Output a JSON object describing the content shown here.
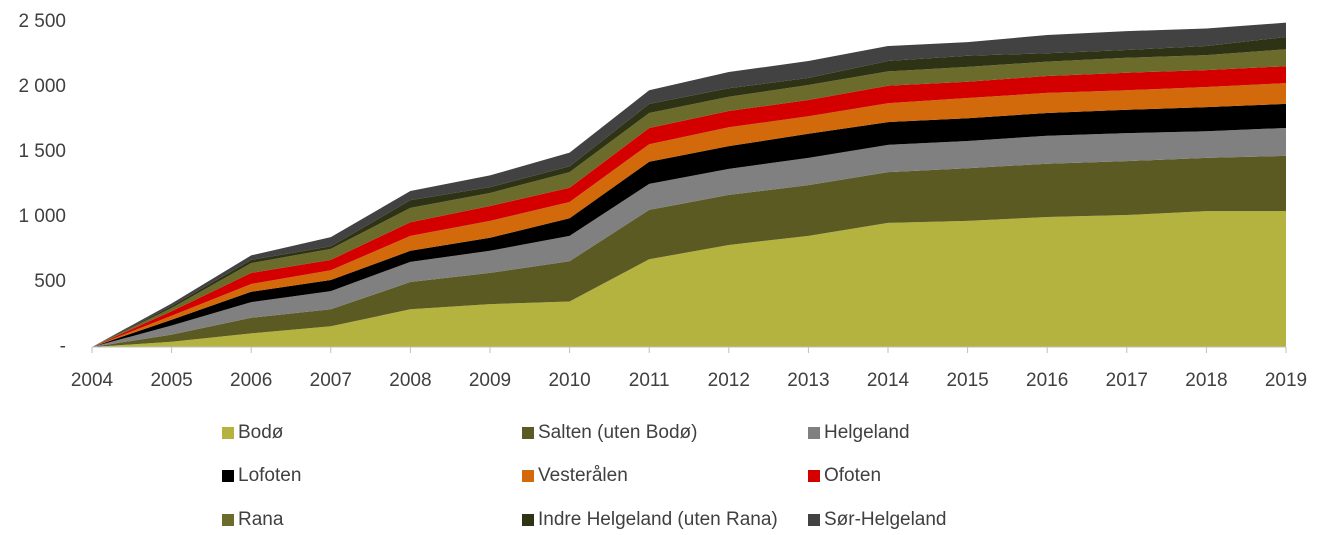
{
  "chart_data": {
    "type": "stacked_area",
    "categories": [
      "2004",
      "2005",
      "2006",
      "2007",
      "2008",
      "2009",
      "2010",
      "2011",
      "2012",
      "2013",
      "2014",
      "2015",
      "2016",
      "2017",
      "2018",
      "2019"
    ],
    "ylim": [
      0,
      2500
    ],
    "yticks": [
      {
        "value": 0,
        "label": "-"
      },
      500,
      {
        "value": 1000,
        "label": "1 000"
      },
      {
        "value": 1500,
        "label": "1 500"
      },
      {
        "value": 2000,
        "label": "2 000"
      },
      {
        "value": 2500,
        "label": "2 500"
      }
    ],
    "grid": false,
    "legend": "bottom",
    "series": [
      {
        "name": "Bodø",
        "color": "#b5b340",
        "values": [
          0,
          40,
          105,
          160,
          290,
          330,
          350,
          675,
          785,
          855,
          955,
          970,
          1000,
          1015,
          1045,
          1045
        ]
      },
      {
        "name": "Salten (uten Bodø)",
        "color": "#5a5a22",
        "values": [
          0,
          55,
          120,
          130,
          210,
          240,
          310,
          380,
          385,
          390,
          390,
          405,
          410,
          415,
          410,
          425
        ]
      },
      {
        "name": "Helgeland",
        "color": "#808080",
        "values": [
          0,
          70,
          120,
          140,
          155,
          170,
          195,
          200,
          200,
          210,
          210,
          210,
          215,
          215,
          205,
          215
        ]
      },
      {
        "name": "Lofoten",
        "color": "#000000",
        "values": [
          0,
          45,
          80,
          85,
          85,
          100,
          135,
          170,
          175,
          185,
          175,
          175,
          175,
          180,
          185,
          185
        ]
      },
      {
        "name": "Vesterålen",
        "color": "#d2690a",
        "values": [
          0,
          30,
          60,
          75,
          115,
          130,
          125,
          135,
          145,
          135,
          145,
          155,
          155,
          150,
          155,
          160
        ]
      },
      {
        "name": "Ofoten",
        "color": "#d40000",
        "values": [
          0,
          35,
          85,
          80,
          105,
          115,
          110,
          125,
          125,
          125,
          135,
          125,
          130,
          135,
          130,
          130
        ]
      },
      {
        "name": "Rana",
        "color": "#6b6b2b",
        "values": [
          0,
          25,
          75,
          85,
          110,
          100,
          120,
          115,
          110,
          115,
          110,
          115,
          110,
          115,
          115,
          130
        ]
      },
      {
        "name": "Indre Helgeland (uten Rana)",
        "color": "#2f3316",
        "values": [
          0,
          15,
          25,
          20,
          60,
          45,
          45,
          70,
          65,
          55,
          80,
          85,
          65,
          60,
          70,
          95
        ]
      },
      {
        "name": "Sør-Helgeland",
        "color": "#424242",
        "values": [
          0,
          20,
          35,
          70,
          70,
          90,
          105,
          105,
          125,
          130,
          115,
          105,
          140,
          145,
          135,
          110
        ]
      }
    ]
  }
}
